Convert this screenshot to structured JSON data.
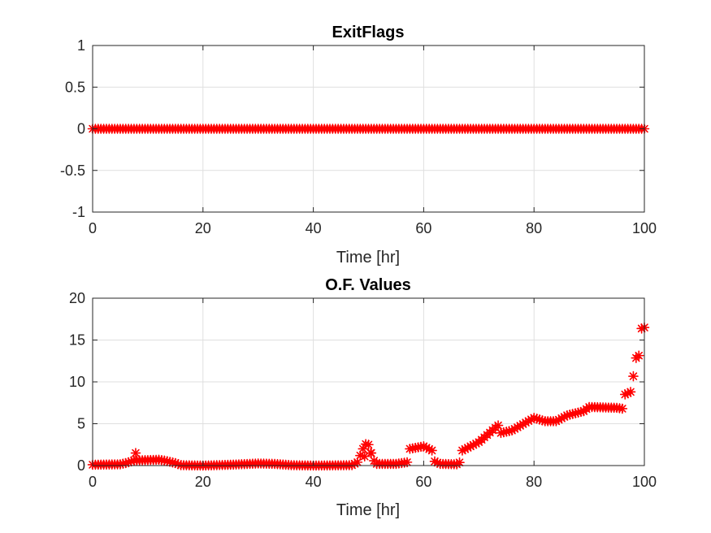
{
  "chart_data": [
    {
      "type": "scatter",
      "title": "ExitFlags",
      "xlabel": "Time [hr]",
      "ylabel": "",
      "xlim": [
        0,
        100
      ],
      "ylim": [
        -1,
        1
      ],
      "xticks": [
        "0",
        "20",
        "40",
        "60",
        "80",
        "100"
      ],
      "yticks": [
        "1",
        "0.5",
        "0",
        "-0.5",
        "-1"
      ],
      "grid": true,
      "marker": "asterisk",
      "color": "#ff0000",
      "series": [
        {
          "x_start": 0,
          "x_end": 100,
          "x_step": 0.5,
          "y_constant": 0
        }
      ]
    },
    {
      "type": "scatter",
      "title": "O.F. Values",
      "xlabel": "Time [hr]",
      "ylabel": "",
      "xlim": [
        0,
        100
      ],
      "ylim": [
        0,
        20
      ],
      "xticks": [
        "0",
        "20",
        "40",
        "60",
        "80",
        "100"
      ],
      "yticks": [
        "20",
        "15",
        "10",
        "5",
        "0"
      ],
      "grid": true,
      "marker": "asterisk",
      "color": "#ff0000",
      "series": [
        {
          "x_start": 0,
          "x_end": 100,
          "x_step": 0.5,
          "curve": [
            [
              0,
              0.1
            ],
            [
              5,
              0.15
            ],
            [
              6,
              0.3
            ],
            [
              7.5,
              0.6
            ],
            [
              12,
              0.7
            ],
            [
              13,
              0.6
            ],
            [
              15,
              0.3
            ],
            [
              16,
              0.05
            ],
            [
              20,
              0.0
            ],
            [
              25,
              0.1
            ],
            [
              30,
              0.25
            ],
            [
              33,
              0.2
            ],
            [
              36,
              0.05
            ],
            [
              40,
              0.0
            ],
            [
              47,
              0.05
            ],
            [
              48,
              0.4
            ],
            [
              49,
              2.0
            ],
            [
              49.7,
              2.8
            ],
            [
              50.3,
              2.2
            ],
            [
              50.7,
              0.8
            ],
            [
              51.5,
              0.2
            ],
            [
              55,
              0.2
            ],
            [
              57,
              0.4
            ],
            [
              57.5,
              2.0
            ],
            [
              60,
              2.3
            ],
            [
              61.5,
              1.8
            ],
            [
              62,
              0.5
            ],
            [
              63,
              0.2
            ],
            [
              66,
              0.15
            ],
            [
              66.8,
              0.5
            ],
            [
              67,
              1.8
            ],
            [
              70,
              2.8
            ],
            [
              73.5,
              4.8
            ],
            [
              74,
              3.9
            ],
            [
              76,
              4.2
            ],
            [
              80,
              5.7
            ],
            [
              82,
              5.3
            ],
            [
              84,
              5.3
            ],
            [
              86,
              6.0
            ],
            [
              89,
              6.5
            ],
            [
              90,
              7.0
            ],
            [
              95,
              6.9
            ],
            [
              96,
              6.8
            ],
            [
              96.5,
              8.5
            ],
            [
              97.5,
              8.8
            ],
            [
              97.6,
              10.5
            ],
            [
              98.3,
              10.8
            ],
            [
              98.4,
              12.8
            ],
            [
              99.1,
              13.2
            ],
            [
              99.2,
              16.3
            ],
            [
              100,
              16.5
            ]
          ],
          "outliers": [
            {
              "x": 7.8,
              "y": 1.5
            },
            {
              "x": 49.3,
              "y": 1.1
            },
            {
              "x": 50.4,
              "y": 1.5
            }
          ]
        }
      ]
    }
  ]
}
